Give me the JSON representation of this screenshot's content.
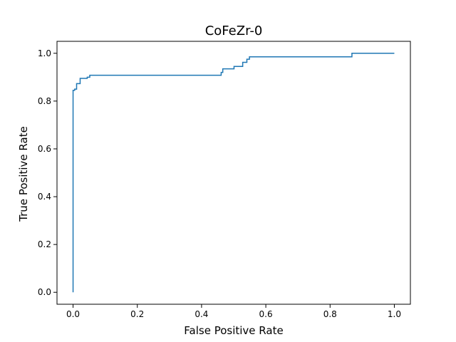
{
  "chart_data": {
    "type": "line",
    "title": "CoFeZr-0",
    "xlabel": "False Positive Rate",
    "ylabel": "True Positive Rate",
    "xlim": [
      -0.05,
      1.05
    ],
    "ylim": [
      -0.05,
      1.05
    ],
    "xticks": [
      0.0,
      0.2,
      0.4,
      0.6,
      0.8,
      1.0
    ],
    "yticks": [
      0.0,
      0.2,
      0.4,
      0.6,
      0.8,
      1.0
    ],
    "xtick_labels": [
      "0.0",
      "0.2",
      "0.4",
      "0.6",
      "0.8",
      "1.0"
    ],
    "ytick_labels": [
      "0.0",
      "0.2",
      "0.4",
      "0.6",
      "0.8",
      "1.0"
    ],
    "grid": false,
    "legend": "none",
    "line_style": "step",
    "series": [
      {
        "color": "#1f77b4",
        "x": [
          0.0,
          0.0,
          0.005,
          0.005,
          0.011,
          0.011,
          0.022,
          0.022,
          0.044,
          0.044,
          0.052,
          0.052,
          0.461,
          0.461,
          0.466,
          0.466,
          0.501,
          0.501,
          0.528,
          0.528,
          0.541,
          0.541,
          0.549,
          0.549,
          0.868,
          0.868,
          1.0
        ],
        "y": [
          0.0,
          0.845,
          0.845,
          0.85,
          0.85,
          0.873,
          0.873,
          0.895,
          0.895,
          0.9,
          0.9,
          0.908,
          0.908,
          0.92,
          0.92,
          0.935,
          0.935,
          0.945,
          0.945,
          0.962,
          0.962,
          0.975,
          0.975,
          0.985,
          0.985,
          1.0,
          1.0
        ]
      }
    ]
  }
}
